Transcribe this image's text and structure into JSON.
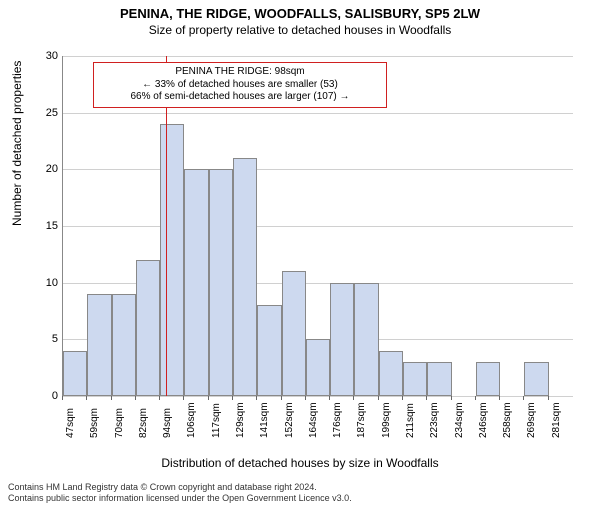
{
  "titles": {
    "main": "PENINA, THE RIDGE, WOODFALLS, SALISBURY, SP5 2LW",
    "sub": "Size of property relative to detached houses in Woodfalls"
  },
  "axes": {
    "ylabel": "Number of detached properties",
    "xlabel": "Distribution of detached houses by size in Woodfalls",
    "ylim": [
      0,
      30
    ],
    "ytick_step": 5,
    "grid_color": "#d0d0d0"
  },
  "chart": {
    "type": "histogram",
    "bar_fill": "#cdd9ef",
    "bar_border": "#888888",
    "background": "#ffffff",
    "x_start": 47,
    "x_step": 12,
    "bins": [
      {
        "label": "47sqm",
        "value": 4
      },
      {
        "label": "59sqm",
        "value": 9
      },
      {
        "label": "70sqm",
        "value": 9
      },
      {
        "label": "82sqm",
        "value": 12
      },
      {
        "label": "94sqm",
        "value": 24
      },
      {
        "label": "106sqm",
        "value": 20
      },
      {
        "label": "117sqm",
        "value": 20
      },
      {
        "label": "129sqm",
        "value": 21
      },
      {
        "label": "141sqm",
        "value": 8
      },
      {
        "label": "152sqm",
        "value": 11
      },
      {
        "label": "164sqm",
        "value": 5
      },
      {
        "label": "176sqm",
        "value": 10
      },
      {
        "label": "187sqm",
        "value": 10
      },
      {
        "label": "199sqm",
        "value": 4
      },
      {
        "label": "211sqm",
        "value": 3
      },
      {
        "label": "223sqm",
        "value": 3
      },
      {
        "label": "234sqm",
        "value": 0
      },
      {
        "label": "246sqm",
        "value": 3
      },
      {
        "label": "258sqm",
        "value": 0
      },
      {
        "label": "269sqm",
        "value": 3
      },
      {
        "label": "281sqm",
        "value": 0
      }
    ]
  },
  "reference": {
    "value_sqm": 98,
    "line_color": "#d02020",
    "label_header": "PENINA THE RIDGE: 98sqm",
    "label_left": "← 33% of detached houses are smaller (53)",
    "label_right": "66% of semi-detached houses are larger (107) →"
  },
  "footer": {
    "line1": "Contains HM Land Registry data © Crown copyright and database right 2024.",
    "line2": "Contains public sector information licensed under the Open Government Licence v3.0."
  }
}
